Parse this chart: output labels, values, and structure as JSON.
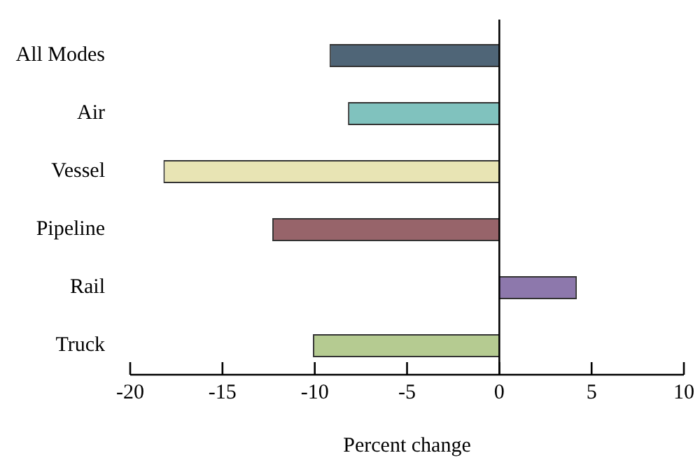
{
  "chart_data": {
    "type": "bar",
    "orientation": "horizontal",
    "xlabel": "Percent change",
    "categories": [
      "All Modes",
      "Air",
      "Vessel",
      "Pipeline",
      "Rail",
      "Truck"
    ],
    "values": [
      -9.2,
      -8.2,
      -18.2,
      -12.3,
      4.2,
      -10.1
    ],
    "colors": [
      "#4f6577",
      "#80c2be",
      "#e8e4b4",
      "#97646a",
      "#8d78ac",
      "#b5cb91"
    ],
    "xlim": [
      -20,
      10
    ],
    "xticks": [
      -20,
      -15,
      -10,
      -5,
      0,
      5,
      10
    ],
    "grid": false,
    "legend": false,
    "ref_lines": [
      {
        "axis": "x",
        "value": 0,
        "color": "#000000"
      }
    ]
  }
}
